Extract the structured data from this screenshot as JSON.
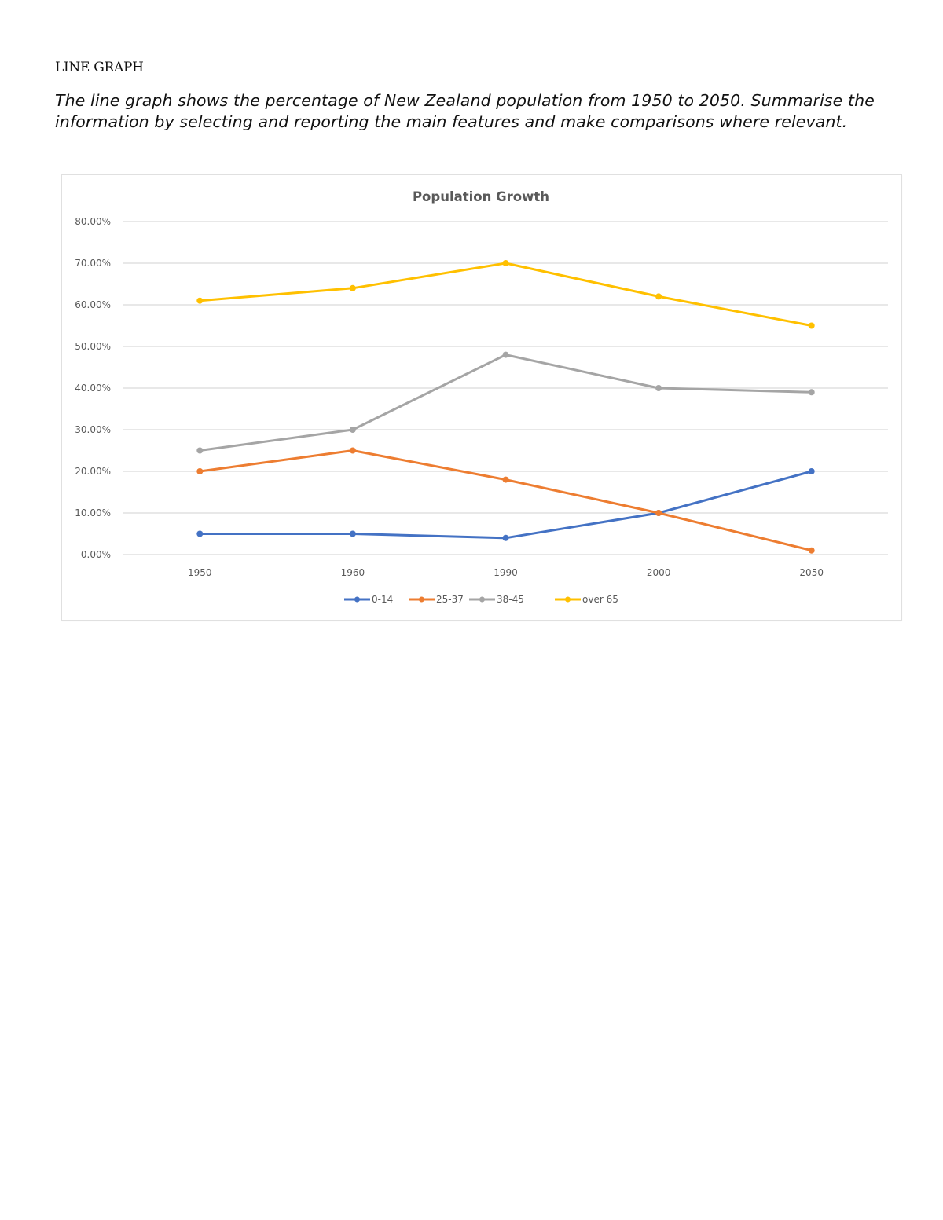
{
  "page": {
    "heading": "LINE GRAPH",
    "prompt": "The line graph shows the percentage of New Zealand population from 1950 to 2050. Summarise the information by selecting and reporting the main features and make comparisons where relevant."
  },
  "chart_data": {
    "type": "line",
    "title": "Population Growth",
    "xlabel": "",
    "ylabel": "",
    "categories": [
      "1950",
      "1960",
      "1990",
      "2000",
      "2050"
    ],
    "y_ticks": [
      "0.00%",
      "10.00%",
      "20.00%",
      "30.00%",
      "40.00%",
      "50.00%",
      "60.00%",
      "70.00%",
      "80.00%"
    ],
    "ylim": [
      0,
      80
    ],
    "grid": true,
    "legend_position": "bottom",
    "series": [
      {
        "name": "0-14",
        "color": "#4472C4",
        "values": [
          5,
          5,
          4,
          10,
          20
        ]
      },
      {
        "name": "25-37",
        "color": "#ED7D31",
        "values": [
          20,
          25,
          18,
          10,
          1
        ]
      },
      {
        "name": "38-45",
        "color": "#A5A5A5",
        "values": [
          25,
          30,
          48,
          40,
          39
        ]
      },
      {
        "name": "over 65",
        "color": "#FFC000",
        "values": [
          61,
          64,
          70,
          62,
          55
        ]
      }
    ]
  }
}
